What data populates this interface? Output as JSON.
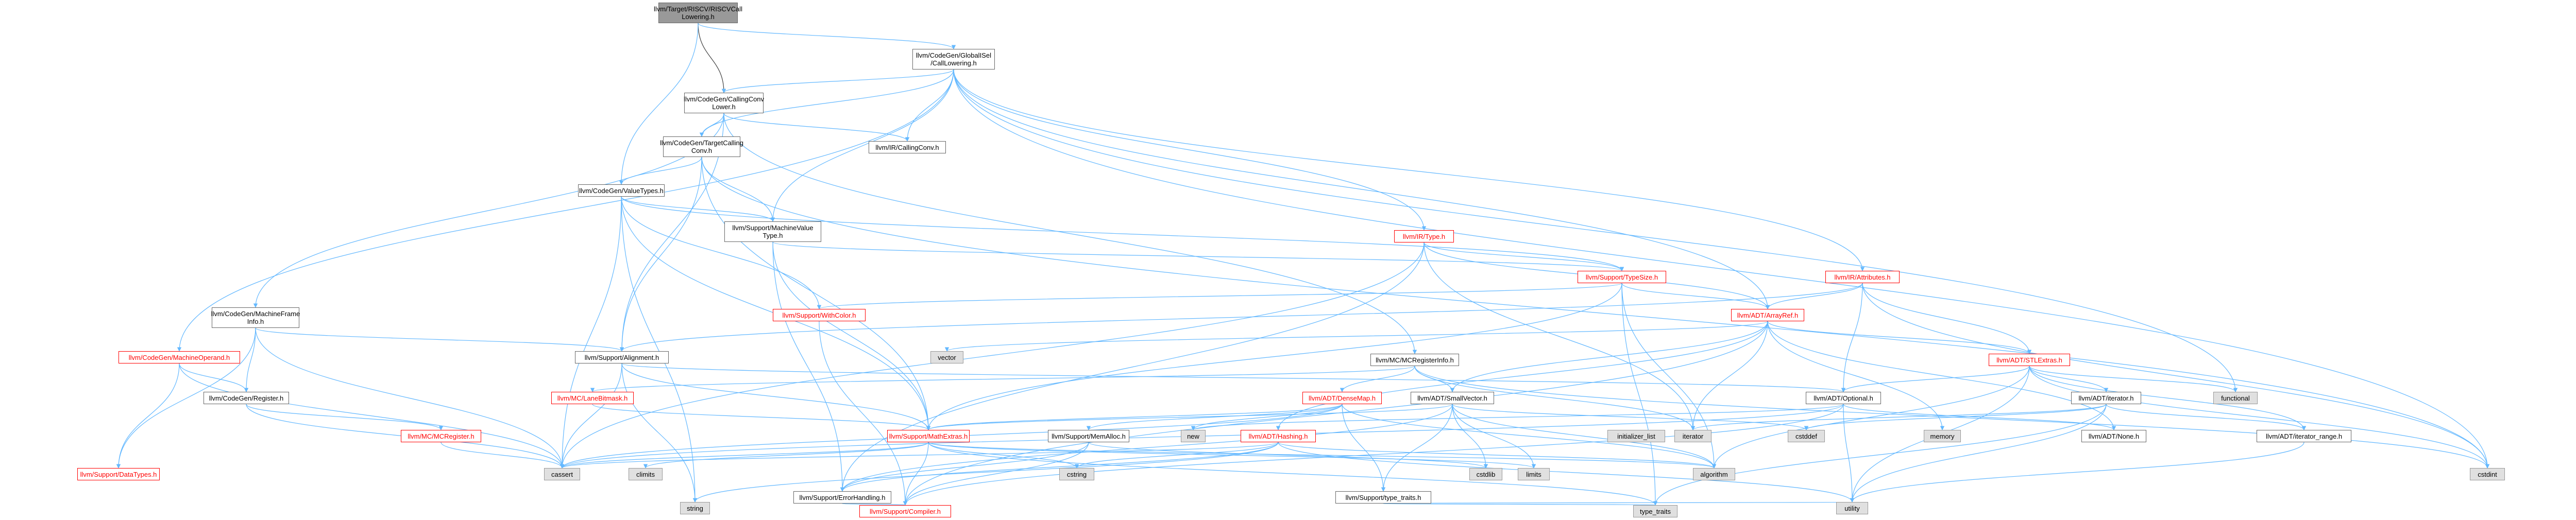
{
  "colors": {
    "edge": "#63b8ff",
    "edge_dark": "#404040",
    "root_fill": "#999999",
    "external_fill": "#e0e0e0",
    "incomplete_border": "#ff0000"
  },
  "nodes": {
    "root": "llvm/Target/RISCV/RISCVCall\nLowering.h",
    "gisel_calllowering": "llvm/CodeGen/GlobalISel\n/CallLowering.h",
    "callingconvlower": "llvm/CodeGen/CallingConv\nLower.h",
    "ir_callingconv": "llvm/IR/CallingConv.h",
    "targetcallingconv": "llvm/CodeGen/TargetCalling\nConv.h",
    "valuetypes": "llvm/CodeGen/ValueTypes.h",
    "machinevaluetype": "llvm/Support/MachineValue\nType.h",
    "ir_type": "llvm/IR/Type.h",
    "ir_attributes": "llvm/IR/Attributes.h",
    "typesize": "llvm/Support/TypeSize.h",
    "withcolor": "llvm/Support/WithColor.h",
    "arrayref": "llvm/ADT/ArrayRef.h",
    "stlextras": "llvm/ADT/STLExtras.h",
    "machineframeinfo": "llvm/CodeGen/MachineFrame\nInfo.h",
    "machineoperand": "llvm/CodeGen/MachineOperand.h",
    "cg_register": "llvm/CodeGen/Register.h",
    "alignment": "llvm/Support/Alignment.h",
    "vector": "vector",
    "mcregisterinfo": "llvm/MC/MCRegisterInfo.h",
    "lanebitmask": "llvm/MC/LaneBitmask.h",
    "densemap": "llvm/ADT/DenseMap.h",
    "smallvector": "llvm/ADT/SmallVector.h",
    "adt_optional": "llvm/ADT/Optional.h",
    "adt_iterator": "llvm/ADT/iterator.h",
    "functional": "functional",
    "mcregister": "llvm/MC/MCRegister.h",
    "mathextras": "llvm/Support/MathExtras.h",
    "memalloc": "llvm/Support/MemAlloc.h",
    "new": "new",
    "adt_hashing": "llvm/ADT/Hashing.h",
    "initializer_list": "initializer_list",
    "iterator_std": "iterator",
    "cstddef": "cstddef",
    "memory": "memory",
    "adt_none": "llvm/ADT/None.h",
    "iterator_range": "llvm/ADT/iterator_range.h",
    "datatypes": "llvm/Support/DataTypes.h",
    "cassert": "cassert",
    "climits": "climits",
    "cstring": "cstring",
    "cstdlib": "cstdlib",
    "limits": "limits",
    "algorithm": "algorithm",
    "cstdint": "cstdint",
    "errorhandling": "llvm/Support/ErrorHandling.h",
    "type_traits_llvm": "llvm/Support/type_traits.h",
    "string": "string",
    "compiler": "llvm/Support/Compiler.h",
    "type_traits": "type_traits",
    "utility": "utility"
  }
}
